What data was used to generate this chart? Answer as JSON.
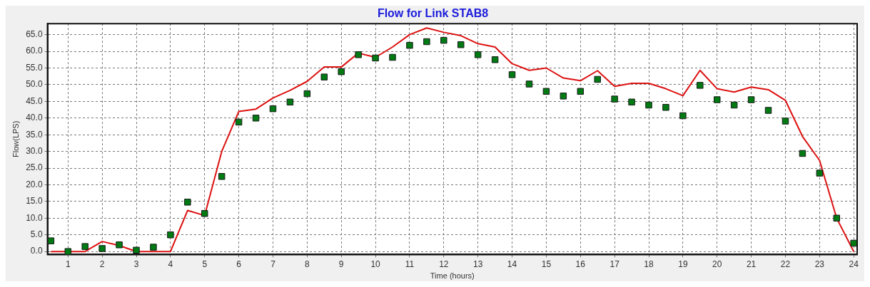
{
  "chart_data": {
    "type": "line",
    "title": "Flow for Link STAB8",
    "xlabel": "Time (hours)",
    "ylabel": "Flow(LPS)",
    "x": [
      0.5,
      1,
      1.5,
      2,
      2.5,
      3,
      3.5,
      4,
      4.5,
      5,
      5.5,
      6,
      6.5,
      7,
      7.5,
      8,
      8.5,
      9,
      9.5,
      10,
      10.5,
      11,
      11.5,
      12,
      12.5,
      13,
      13.5,
      14,
      14.5,
      15,
      15.5,
      16,
      16.5,
      17,
      17.5,
      18,
      18.5,
      19,
      19.5,
      20,
      20.5,
      21,
      21.5,
      22,
      22.5,
      23,
      23.5,
      24
    ],
    "series": [
      {
        "color": "#dd1111",
        "marker": "none",
        "line_style": "solid",
        "values": [
          0,
          0,
          0,
          3,
          1.8,
          0,
          0,
          0,
          12.3,
          10.8,
          30,
          42,
          42.7,
          46,
          48.3,
          51,
          55.3,
          55.3,
          59.5,
          58.2,
          61.3,
          65,
          67,
          65.7,
          64.7,
          62.3,
          61.3,
          56.3,
          54.3,
          55,
          52,
          51.2,
          54.2,
          49.5,
          50.4,
          50.4,
          48.8,
          46.7,
          54.3,
          48.8,
          47.8,
          49.3,
          48.5,
          45.3,
          34.5,
          27.3,
          10,
          0
        ]
      },
      {
        "type": "scatter",
        "color": "#007a12",
        "marker": "square",
        "values": [
          3.2,
          0,
          1.5,
          0.9,
          2,
          0.4,
          1.3,
          5,
          14.8,
          11.4,
          22.5,
          38.8,
          40,
          42.8,
          44.8,
          47.3,
          52.3,
          53.9,
          59,
          58,
          58.2,
          61.8,
          62.9,
          63.3,
          62,
          59,
          57.5,
          53,
          50.2,
          48,
          46.6,
          48,
          51.6,
          45.7,
          44.8,
          43.9,
          43.2,
          40.7,
          49.8,
          45.5,
          43.9,
          45.5,
          42.3,
          39.1,
          29.4,
          23.5,
          10,
          2.5
        ]
      }
    ],
    "xlim": [
      0.4,
      24.1
    ],
    "ylim": [
      -0.9,
      68.3
    ],
    "xticks": [
      1,
      2,
      3,
      4,
      5,
      6,
      7,
      8,
      9,
      10,
      11,
      12,
      13,
      14,
      15,
      16,
      17,
      18,
      19,
      20,
      21,
      22,
      23,
      24
    ],
    "yticks": [
      {
        "value": 0,
        "label": "0.0"
      },
      {
        "value": 5,
        "label": "5.0"
      },
      {
        "value": 10,
        "label": "10.0"
      },
      {
        "value": 15,
        "label": "15.0"
      },
      {
        "value": 20,
        "label": "20.0"
      },
      {
        "value": 25,
        "label": "25.0"
      },
      {
        "value": 30,
        "label": "30.0"
      },
      {
        "value": 35,
        "label": "35.0"
      },
      {
        "value": 40,
        "label": "40.0"
      },
      {
        "value": 45,
        "label": "45.0"
      },
      {
        "value": 50,
        "label": "50.0"
      },
      {
        "value": 55,
        "label": "55.0"
      },
      {
        "value": 60,
        "label": "60.0"
      },
      {
        "value": 65,
        "label": "65.0"
      }
    ],
    "grid": true,
    "legend": false
  }
}
